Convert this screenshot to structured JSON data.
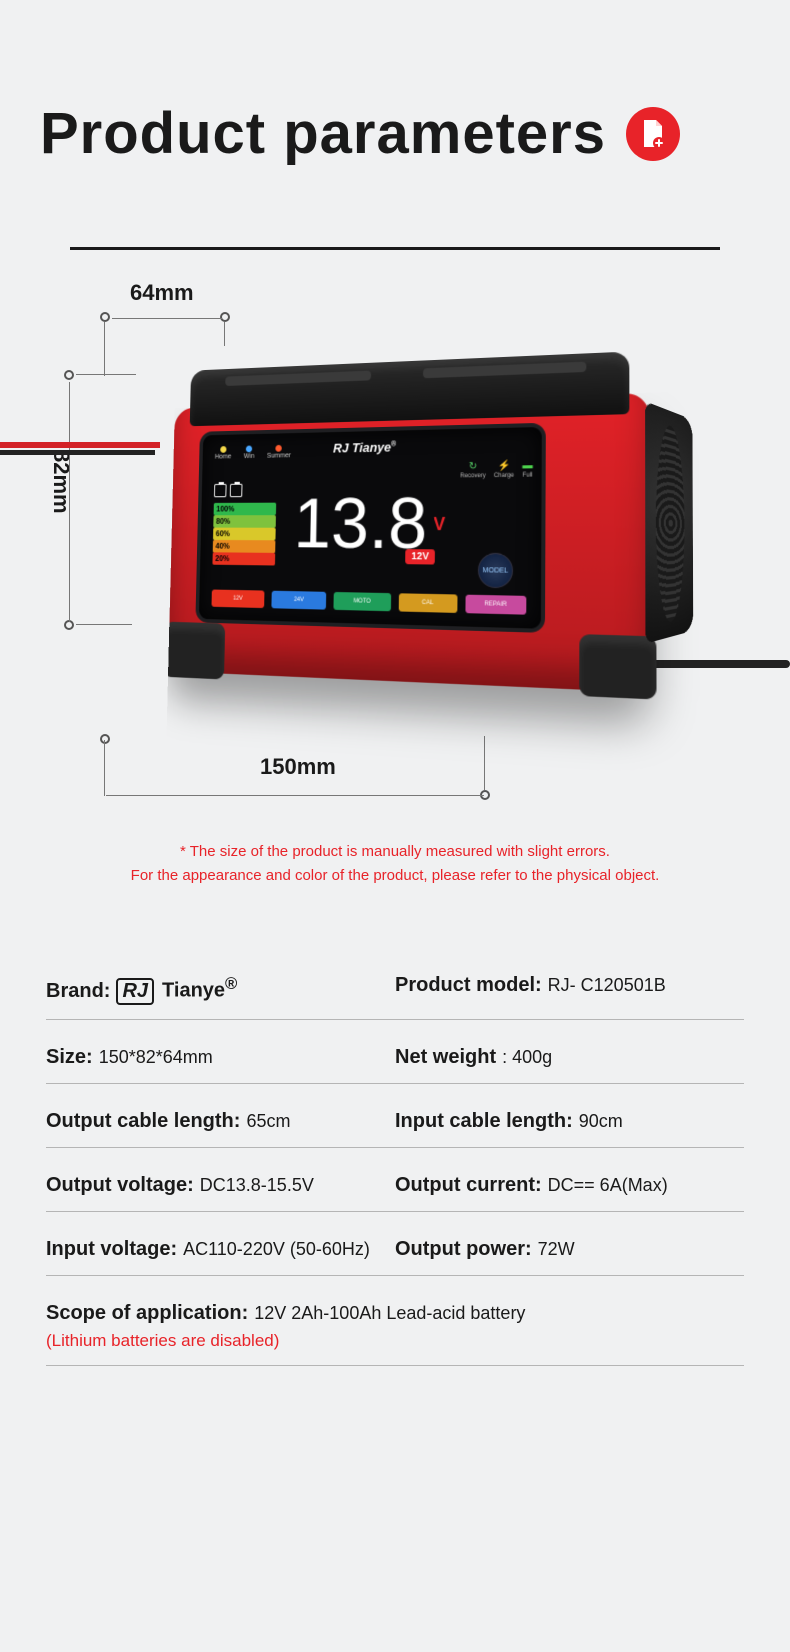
{
  "title": "Product parameters",
  "icon_color": "#e82329",
  "dimensions": {
    "top": "64mm",
    "left": "82mm",
    "bottom": "150mm"
  },
  "cables": {
    "red": "#d32227",
    "black": "#222222"
  },
  "charger": {
    "body_color": "#e22228",
    "brand": "RJ Tianye",
    "brand_sup": "®",
    "reading": "13.8",
    "reading_unit": "V",
    "topbar": [
      {
        "color": "#f5d94a",
        "label": "Home"
      },
      {
        "color": "#49a7ff",
        "label": "Win"
      },
      {
        "color": "#ff5a2e",
        "label": "Summer"
      }
    ],
    "right_status": [
      {
        "symbol": "↻",
        "color": "#58d66a",
        "label": "Recovery"
      },
      {
        "symbol": "⚡",
        "color": "#ff6a2e",
        "label": "Charge"
      },
      {
        "symbol": "▬",
        "color": "#4dd24d",
        "label": "Full"
      }
    ],
    "mode_button": "MODEL",
    "battery_bars": [
      {
        "pct": "100%",
        "color": "#2fb84c"
      },
      {
        "pct": "80%",
        "color": "#7fc23d"
      },
      {
        "pct": "60%",
        "color": "#d9c82a"
      },
      {
        "pct": "40%",
        "color": "#e88a1f"
      },
      {
        "pct": "20%",
        "color": "#e8311f"
      }
    ],
    "modes": [
      {
        "label": "12V",
        "color": "#e8311f"
      },
      {
        "label": "24V",
        "color": "#2a7adf"
      },
      {
        "label": "MOTO",
        "color": "#1f9e5a"
      },
      {
        "label": "CAL",
        "color": "#d49a1f"
      },
      {
        "label": "REPAIR",
        "color": "#c74a9e"
      }
    ],
    "volt_tag": "12V"
  },
  "notes": {
    "line1": "* The size of the product is manually measured with slight errors.",
    "line2": "For the appearance and color of the product, please refer to the physical object."
  },
  "specs": {
    "brand_label": "Brand:",
    "brand_logo": "RJ",
    "brand_text": "Tianye",
    "brand_sup": "®",
    "model_label": "Product model:",
    "model": "RJ- C120501B",
    "size_label": "Size:",
    "size": "150*82*64mm",
    "weight_label": "Net weight",
    "weight": ": 400g",
    "out_cable_label": "Output cable length:",
    "out_cable": "65cm",
    "in_cable_label": "Input cable length:",
    "in_cable": "90cm",
    "out_v_label": "Output voltage:",
    "out_v": "DC13.8-15.5V",
    "out_c_label": "Output current:",
    "out_c": "DC== 6A(Max)",
    "in_v_label": "Input voltage:",
    "in_v": "AC110-220V (50-60Hz)",
    "out_p_label": "Output power:",
    "out_p": "72W",
    "scope_label": "Scope of application:",
    "scope": "12V 2Ah-100Ah Lead-acid battery",
    "scope_note": "(Lithium batteries are disabled)"
  }
}
